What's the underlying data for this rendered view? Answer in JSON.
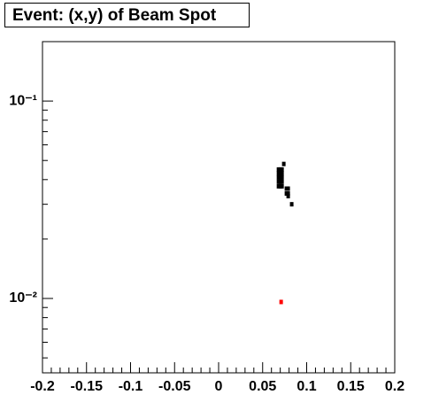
{
  "chart_data": {
    "type": "scatter",
    "title": "Event: (x,y) of Beam Spot",
    "x": [
      0.068,
      0.068,
      0.068,
      0.068,
      0.068,
      0.07,
      0.07,
      0.07,
      0.07,
      0.07,
      0.072,
      0.072,
      0.072,
      0.072,
      0.072,
      0.077,
      0.077,
      0.079,
      0.079,
      0.079,
      0.074,
      0.083,
      0.071
    ],
    "values": [
      0.045,
      0.043,
      0.041,
      0.039,
      0.037,
      0.045,
      0.043,
      0.041,
      0.039,
      0.037,
      0.045,
      0.043,
      0.041,
      0.039,
      0.037,
      0.036,
      0.034,
      0.036,
      0.034,
      0.033,
      0.048,
      0.03,
      0.0096
    ],
    "point_colors": [
      "#000000",
      "#000000",
      "#000000",
      "#000000",
      "#000000",
      "#000000",
      "#000000",
      "#000000",
      "#000000",
      "#000000",
      "#000000",
      "#000000",
      "#000000",
      "#000000",
      "#000000",
      "#000000",
      "#000000",
      "#000000",
      "#000000",
      "#000000",
      "#000000",
      "#000000",
      "#ff0000"
    ],
    "xlim": [
      -0.2,
      0.2
    ],
    "ylim": [
      0.0042,
      0.2
    ],
    "log_y": true,
    "xticks": [
      -0.2,
      -0.15,
      -0.1,
      -0.05,
      0,
      0.05,
      0.1,
      0.15,
      0.2
    ],
    "xminorticks": [
      -0.19,
      -0.18,
      -0.17,
      -0.16,
      -0.14,
      -0.13,
      -0.12,
      -0.11,
      -0.09,
      -0.08,
      -0.07,
      -0.06,
      -0.04,
      -0.03,
      -0.02,
      -0.01,
      0.01,
      0.02,
      0.03,
      0.04,
      0.06,
      0.07,
      0.08,
      0.09,
      0.11,
      0.12,
      0.13,
      0.14,
      0.16,
      0.17,
      0.18,
      0.19
    ],
    "yticks": [
      {
        "value": 0.1,
        "label": "10⁻¹"
      },
      {
        "value": 0.01,
        "label": "10⁻²"
      }
    ],
    "yminorticks": [
      0.005,
      0.006,
      0.007,
      0.008,
      0.009,
      0.02,
      0.03,
      0.04,
      0.05,
      0.06,
      0.07,
      0.08,
      0.09,
      0.2
    ],
    "grid": false
  }
}
